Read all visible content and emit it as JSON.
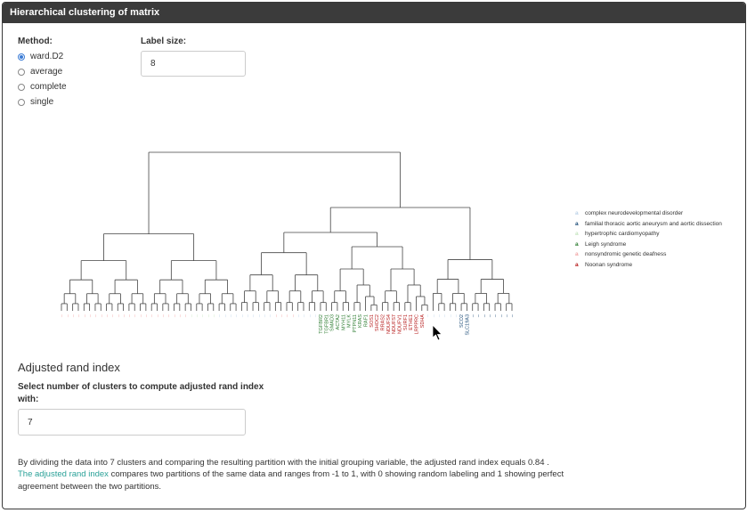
{
  "panel": {
    "title": "Hierarchical clustering of matrix"
  },
  "method": {
    "label": "Method:",
    "options": [
      {
        "label": "ward.D2",
        "selected": true
      },
      {
        "label": "average",
        "selected": false
      },
      {
        "label": "complete",
        "selected": false
      },
      {
        "label": "single",
        "selected": false
      }
    ]
  },
  "label_size": {
    "label": "Label size:",
    "value": "8"
  },
  "legend": {
    "items": [
      {
        "key": "a",
        "label": "complex neurodevelopmental disorder",
        "color": "#bcd2e8"
      },
      {
        "key": "a",
        "label": "familial thoracic aortic aneurysm and aortic dissection",
        "color": "#1f4e79"
      },
      {
        "key": "a",
        "label": "hypertrophic cardiomyopathy",
        "color": "#c7e6c1"
      },
      {
        "key": "a",
        "label": "Leigh syndrome",
        "color": "#2e7d32"
      },
      {
        "key": "a",
        "label": "nonsyndromic genetic deafness",
        "color": "#f2a7a7"
      },
      {
        "key": "a",
        "label": "Noonan syndrome",
        "color": "#b71c1c"
      }
    ]
  },
  "dendrogram": {
    "visible_labels": [
      "TGFBR2",
      "TGFBR1",
      "SMAD3",
      "ACTA2",
      "MYH11",
      "MYLK",
      "PTPN11",
      "KRAS",
      "RAF1",
      "SOS1",
      "SHOC2",
      "RRAS2",
      "NDUFS4",
      "NDUFS7",
      "NDUFV1",
      "SURF1",
      "ETHE1",
      "LRPPRC",
      "SDHA",
      "SCO2",
      "SLC19A3"
    ]
  },
  "ari": {
    "title": "Adjusted rand index",
    "prompt_line1": "Select number of clusters to compute adjusted rand index",
    "prompt_line2": "with:",
    "value": "7",
    "result_text": "By dividing the data into 7 clusters and comparing the resulting partition with the initial grouping variable, the adjusted rand index equals 0.84 .",
    "link_text": "The adjusted rand index",
    "desc_line1": " compares two partitions of the same data and ranges from -1 to 1, with 0 showing random labeling and 1 showing perfect",
    "desc_line2": "agreement between the two partitions."
  },
  "colors": {
    "header_bg": "#3b3b3b",
    "link": "#2aa198",
    "radio_accent": "#3a7bd5"
  }
}
